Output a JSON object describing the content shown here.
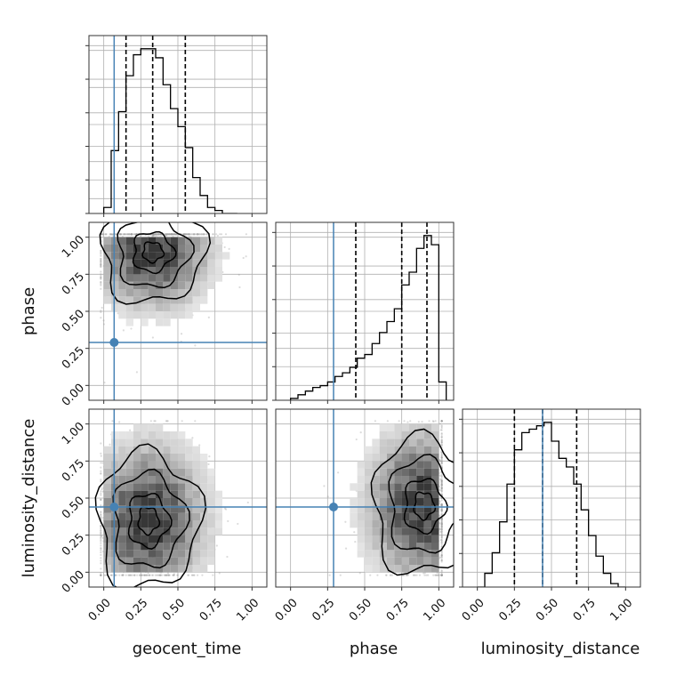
{
  "chart_data": {
    "type": "corner",
    "parameters": [
      "geocent_time",
      "phase",
      "luminosity_distance"
    ],
    "tick_labels": [
      "0.00",
      "0.25",
      "0.50",
      "0.75",
      "1.00"
    ],
    "axis_range": [
      -0.1,
      1.1
    ],
    "grid": true,
    "truth_color": "#4682b4",
    "truths": {
      "geocent_time": 0.07,
      "phase": 0.29,
      "luminosity_distance": 0.44
    },
    "quantiles": {
      "geocent_time": [
        0.15,
        0.33,
        0.55
      ],
      "phase": [
        0.44,
        0.75,
        0.92
      ],
      "luminosity_distance": [
        0.25,
        0.44,
        0.67
      ]
    },
    "histograms": {
      "geocent_time": {
        "bin_edges": [
          0.0,
          0.05,
          0.1,
          0.15,
          0.2,
          0.25,
          0.3,
          0.35,
          0.4,
          0.45,
          0.5,
          0.55,
          0.6,
          0.65,
          0.7,
          0.75,
          0.8,
          0.85,
          0.9
        ],
        "counts": [
          2,
          21,
          34,
          46,
          53,
          55,
          55,
          52,
          43,
          35,
          29,
          22,
          12,
          6,
          2,
          1,
          0,
          0
        ]
      },
      "phase": {
        "bin_edges": [
          0.0,
          0.05,
          0.1,
          0.15,
          0.2,
          0.25,
          0.3,
          0.35,
          0.4,
          0.45,
          0.5,
          0.55,
          0.6,
          0.65,
          0.7,
          0.75,
          0.8,
          0.85,
          0.9,
          0.95,
          1.0,
          1.05
        ],
        "counts": [
          1,
          3,
          5,
          7,
          8,
          10,
          13,
          15,
          18,
          23,
          25,
          31,
          37,
          43,
          50,
          63,
          70,
          83,
          90,
          85,
          10
        ]
      },
      "luminosity_distance": {
        "bin_edges": [
          0.0,
          0.05,
          0.1,
          0.15,
          0.2,
          0.25,
          0.3,
          0.35,
          0.4,
          0.45,
          0.5,
          0.55,
          0.6,
          0.65,
          0.7,
          0.75,
          0.8,
          0.85,
          0.9,
          0.95,
          1.0
        ],
        "counts": [
          0,
          8,
          20,
          38,
          60,
          80,
          90,
          92,
          94,
          96,
          85,
          75,
          70,
          60,
          45,
          30,
          18,
          8,
          2,
          0
        ]
      }
    },
    "scatter_panels": [
      {
        "x": "geocent_time",
        "y": "phase",
        "density_peak": [
          0.33,
          0.9
        ],
        "spread": [
          0.15,
          0.15
        ]
      },
      {
        "x": "geocent_time",
        "y": "luminosity_distance",
        "density_peak": [
          0.3,
          0.35
        ],
        "spread": [
          0.15,
          0.2
        ]
      },
      {
        "x": "phase",
        "y": "luminosity_distance",
        "density_peak": [
          0.9,
          0.45
        ],
        "spread": [
          0.15,
          0.2
        ]
      }
    ]
  }
}
